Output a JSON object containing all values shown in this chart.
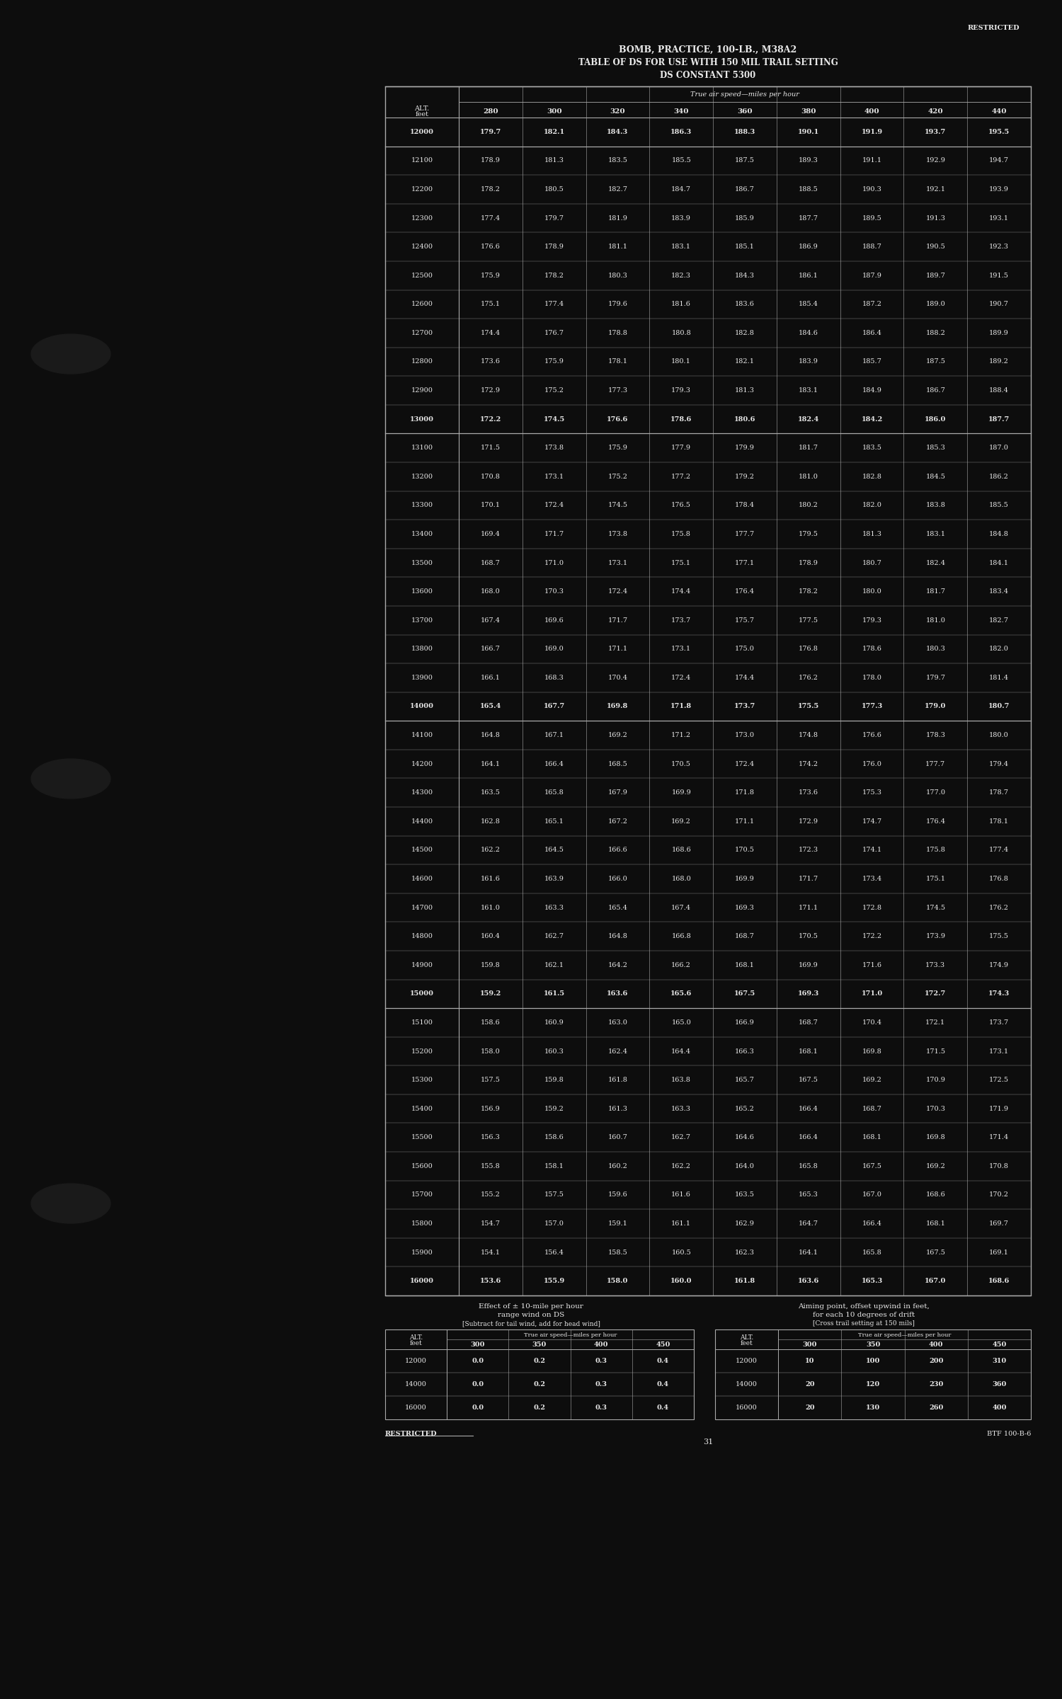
{
  "title_line1": "BOMB, PRACTICE, 100-LB., M38A2",
  "title_line2": "TABLE OF DS FOR USE WITH 150 MIL TRAIL SETTING",
  "title_line3": "DS CONSTANT 5300",
  "restricted_text": "RESTRICTED",
  "page_number": "31",
  "footer_code": "BTF 100-B-6",
  "bg_color": "#0d0d0d",
  "text_color": "#e8e8e8",
  "line_color": "#aaaaaa",
  "speed_cols": [
    "280",
    "300",
    "320",
    "340",
    "360",
    "380",
    "400",
    "420",
    "440"
  ],
  "main_table_rows": [
    {
      "alt": "12000",
      "sep": true,
      "vals": [
        "179.7",
        "182.1",
        "184.3",
        "186.3",
        "188.3",
        "190.1",
        "191.9",
        "193.7",
        "195.5"
      ]
    },
    {
      "alt": "12100",
      "sep": false,
      "vals": [
        "178.9",
        "181.3",
        "183.5",
        "185.5",
        "187.5",
        "189.3",
        "191.1",
        "192.9",
        "194.7"
      ]
    },
    {
      "alt": "12200",
      "sep": false,
      "vals": [
        "178.2",
        "180.5",
        "182.7",
        "184.7",
        "186.7",
        "188.5",
        "190.3",
        "192.1",
        "193.9"
      ]
    },
    {
      "alt": "12300",
      "sep": false,
      "vals": [
        "177.4",
        "179.7",
        "181.9",
        "183.9",
        "185.9",
        "187.7",
        "189.5",
        "191.3",
        "193.1"
      ]
    },
    {
      "alt": "12400",
      "sep": false,
      "vals": [
        "176.6",
        "178.9",
        "181.1",
        "183.1",
        "185.1",
        "186.9",
        "188.7",
        "190.5",
        "192.3"
      ]
    },
    {
      "alt": "12500",
      "sep": false,
      "vals": [
        "175.9",
        "178.2",
        "180.3",
        "182.3",
        "184.3",
        "186.1",
        "187.9",
        "189.7",
        "191.5"
      ]
    },
    {
      "alt": "12600",
      "sep": false,
      "vals": [
        "175.1",
        "177.4",
        "179.6",
        "181.6",
        "183.6",
        "185.4",
        "187.2",
        "189.0",
        "190.7"
      ]
    },
    {
      "alt": "12700",
      "sep": false,
      "vals": [
        "174.4",
        "176.7",
        "178.8",
        "180.8",
        "182.8",
        "184.6",
        "186.4",
        "188.2",
        "189.9"
      ]
    },
    {
      "alt": "12800",
      "sep": false,
      "vals": [
        "173.6",
        "175.9",
        "178.1",
        "180.1",
        "182.1",
        "183.9",
        "185.7",
        "187.5",
        "189.2"
      ]
    },
    {
      "alt": "12900",
      "sep": false,
      "vals": [
        "172.9",
        "175.2",
        "177.3",
        "179.3",
        "181.3",
        "183.1",
        "184.9",
        "186.7",
        "188.4"
      ]
    },
    {
      "alt": "13000",
      "sep": true,
      "vals": [
        "172.2",
        "174.5",
        "176.6",
        "178.6",
        "180.6",
        "182.4",
        "184.2",
        "186.0",
        "187.7"
      ]
    },
    {
      "alt": "13100",
      "sep": false,
      "vals": [
        "171.5",
        "173.8",
        "175.9",
        "177.9",
        "179.9",
        "181.7",
        "183.5",
        "185.3",
        "187.0"
      ]
    },
    {
      "alt": "13200",
      "sep": false,
      "vals": [
        "170.8",
        "173.1",
        "175.2",
        "177.2",
        "179.2",
        "181.0",
        "182.8",
        "184.5",
        "186.2"
      ]
    },
    {
      "alt": "13300",
      "sep": false,
      "vals": [
        "170.1",
        "172.4",
        "174.5",
        "176.5",
        "178.4",
        "180.2",
        "182.0",
        "183.8",
        "185.5"
      ]
    },
    {
      "alt": "13400",
      "sep": false,
      "vals": [
        "169.4",
        "171.7",
        "173.8",
        "175.8",
        "177.7",
        "179.5",
        "181.3",
        "183.1",
        "184.8"
      ]
    },
    {
      "alt": "13500",
      "sep": false,
      "vals": [
        "168.7",
        "171.0",
        "173.1",
        "175.1",
        "177.1",
        "178.9",
        "180.7",
        "182.4",
        "184.1"
      ]
    },
    {
      "alt": "13600",
      "sep": false,
      "vals": [
        "168.0",
        "170.3",
        "172.4",
        "174.4",
        "176.4",
        "178.2",
        "180.0",
        "181.7",
        "183.4"
      ]
    },
    {
      "alt": "13700",
      "sep": false,
      "vals": [
        "167.4",
        "169.6",
        "171.7",
        "173.7",
        "175.7",
        "177.5",
        "179.3",
        "181.0",
        "182.7"
      ]
    },
    {
      "alt": "13800",
      "sep": false,
      "vals": [
        "166.7",
        "169.0",
        "171.1",
        "173.1",
        "175.0",
        "176.8",
        "178.6",
        "180.3",
        "182.0"
      ]
    },
    {
      "alt": "13900",
      "sep": false,
      "vals": [
        "166.1",
        "168.3",
        "170.4",
        "172.4",
        "174.4",
        "176.2",
        "178.0",
        "179.7",
        "181.4"
      ]
    },
    {
      "alt": "14000",
      "sep": true,
      "vals": [
        "165.4",
        "167.7",
        "169.8",
        "171.8",
        "173.7",
        "175.5",
        "177.3",
        "179.0",
        "180.7"
      ]
    },
    {
      "alt": "14100",
      "sep": false,
      "vals": [
        "164.8",
        "167.1",
        "169.2",
        "171.2",
        "173.0",
        "174.8",
        "176.6",
        "178.3",
        "180.0"
      ]
    },
    {
      "alt": "14200",
      "sep": false,
      "vals": [
        "164.1",
        "166.4",
        "168.5",
        "170.5",
        "172.4",
        "174.2",
        "176.0",
        "177.7",
        "179.4"
      ]
    },
    {
      "alt": "14300",
      "sep": false,
      "vals": [
        "163.5",
        "165.8",
        "167.9",
        "169.9",
        "171.8",
        "173.6",
        "175.3",
        "177.0",
        "178.7"
      ]
    },
    {
      "alt": "14400",
      "sep": false,
      "vals": [
        "162.8",
        "165.1",
        "167.2",
        "169.2",
        "171.1",
        "172.9",
        "174.7",
        "176.4",
        "178.1"
      ]
    },
    {
      "alt": "14500",
      "sep": false,
      "vals": [
        "162.2",
        "164.5",
        "166.6",
        "168.6",
        "170.5",
        "172.3",
        "174.1",
        "175.8",
        "177.4"
      ]
    },
    {
      "alt": "14600",
      "sep": false,
      "vals": [
        "161.6",
        "163.9",
        "166.0",
        "168.0",
        "169.9",
        "171.7",
        "173.4",
        "175.1",
        "176.8"
      ]
    },
    {
      "alt": "14700",
      "sep": false,
      "vals": [
        "161.0",
        "163.3",
        "165.4",
        "167.4",
        "169.3",
        "171.1",
        "172.8",
        "174.5",
        "176.2"
      ]
    },
    {
      "alt": "14800",
      "sep": false,
      "vals": [
        "160.4",
        "162.7",
        "164.8",
        "166.8",
        "168.7",
        "170.5",
        "172.2",
        "173.9",
        "175.5"
      ]
    },
    {
      "alt": "14900",
      "sep": false,
      "vals": [
        "159.8",
        "162.1",
        "164.2",
        "166.2",
        "168.1",
        "169.9",
        "171.6",
        "173.3",
        "174.9"
      ]
    },
    {
      "alt": "15000",
      "sep": true,
      "vals": [
        "159.2",
        "161.5",
        "163.6",
        "165.6",
        "167.5",
        "169.3",
        "171.0",
        "172.7",
        "174.3"
      ]
    },
    {
      "alt": "15100",
      "sep": false,
      "vals": [
        "158.6",
        "160.9",
        "163.0",
        "165.0",
        "166.9",
        "168.7",
        "170.4",
        "172.1",
        "173.7"
      ]
    },
    {
      "alt": "15200",
      "sep": false,
      "vals": [
        "158.0",
        "160.3",
        "162.4",
        "164.4",
        "166.3",
        "168.1",
        "169.8",
        "171.5",
        "173.1"
      ]
    },
    {
      "alt": "15300",
      "sep": false,
      "vals": [
        "157.5",
        "159.8",
        "161.8",
        "163.8",
        "165.7",
        "167.5",
        "169.2",
        "170.9",
        "172.5"
      ]
    },
    {
      "alt": "15400",
      "sep": false,
      "vals": [
        "156.9",
        "159.2",
        "161.3",
        "163.3",
        "165.2",
        "166.4",
        "168.7",
        "170.3",
        "171.9"
      ]
    },
    {
      "alt": "15500",
      "sep": false,
      "vals": [
        "156.3",
        "158.6",
        "160.7",
        "162.7",
        "164.6",
        "166.4",
        "168.1",
        "169.8",
        "171.4"
      ]
    },
    {
      "alt": "15600",
      "sep": false,
      "vals": [
        "155.8",
        "158.1",
        "160.2",
        "162.2",
        "164.0",
        "165.8",
        "167.5",
        "169.2",
        "170.8"
      ]
    },
    {
      "alt": "15700",
      "sep": false,
      "vals": [
        "155.2",
        "157.5",
        "159.6",
        "161.6",
        "163.5",
        "165.3",
        "167.0",
        "168.6",
        "170.2"
      ]
    },
    {
      "alt": "15800",
      "sep": false,
      "vals": [
        "154.7",
        "157.0",
        "159.1",
        "161.1",
        "162.9",
        "164.7",
        "166.4",
        "168.1",
        "169.7"
      ]
    },
    {
      "alt": "15900",
      "sep": false,
      "vals": [
        "154.1",
        "156.4",
        "158.5",
        "160.5",
        "162.3",
        "164.1",
        "165.8",
        "167.5",
        "169.1"
      ]
    },
    {
      "alt": "16000",
      "sep": true,
      "vals": [
        "153.6",
        "155.9",
        "158.0",
        "160.0",
        "161.8",
        "163.6",
        "165.3",
        "167.0",
        "168.6"
      ]
    }
  ],
  "bl_title1": "Effect of ± 10-mile per hour",
  "bl_title2": "range wind on DS",
  "bl_note": "[Subtract for tail wind, add for head wind]",
  "bl_rows": [
    [
      "12000",
      "0.0",
      "0.2",
      "0.3",
      "0.4"
    ],
    [
      "14000",
      "0.0",
      "0.2",
      "0.3",
      "0.4"
    ],
    [
      "16000",
      "0.0",
      "0.2",
      "0.3",
      "0.4"
    ]
  ],
  "br_title1": "Aiming point, offset upwind in feet,",
  "br_title2": "for each 10 degrees of drift",
  "br_note": "[Cross trail setting at 150 mils]",
  "br_rows": [
    [
      "12000",
      "10",
      "100",
      "200",
      "310"
    ],
    [
      "14000",
      "20",
      "120",
      "230",
      "360"
    ],
    [
      "16000",
      "20",
      "130",
      "260",
      "400"
    ]
  ]
}
